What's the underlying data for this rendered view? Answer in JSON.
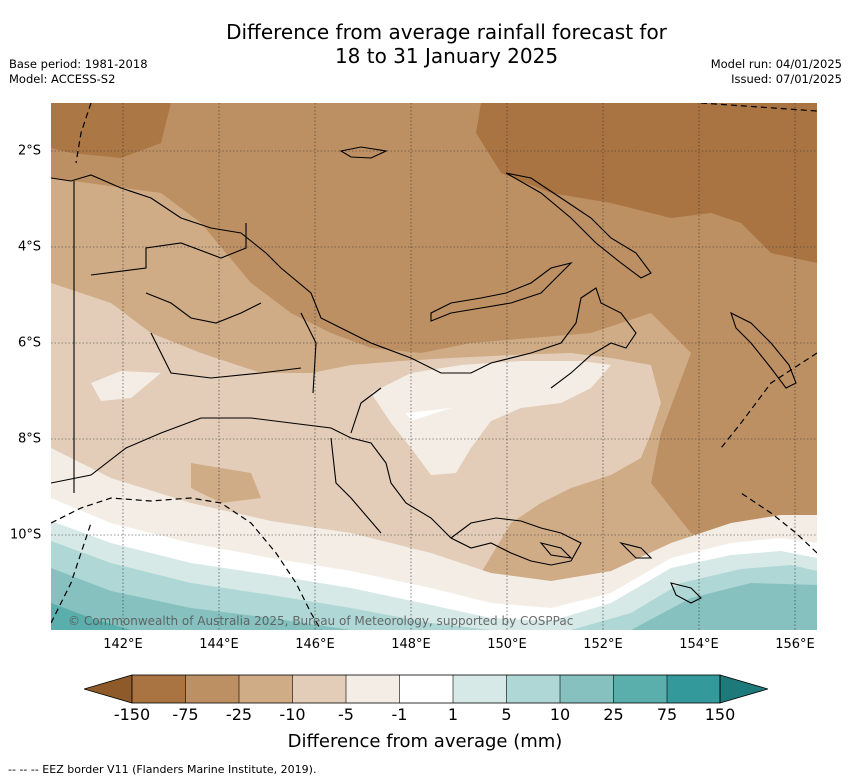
{
  "title_line1": "Difference from average rainfall forecast for",
  "title_line2": "18 to 31 January 2025",
  "base_period": "Base period: 1981-2018",
  "model": "Model: ACCESS-S2",
  "model_run": "Model run: 04/01/2025",
  "issued": "Issued: 07/01/2025",
  "copyright": "© Commonwealth of Australia 2025, Bureau of Meteorology, supported by COSPPac",
  "longitude_labels": [
    "142°E",
    "144°E",
    "146°E",
    "148°E",
    "150°E",
    "152°E",
    "154°E",
    "156°E"
  ],
  "latitude_labels": [
    "2°S",
    "4°S",
    "6°S",
    "8°S",
    "10°S"
  ],
  "colorbar": {
    "ticks": [
      "-150",
      "-75",
      "-25",
      "-10",
      "-5",
      "-1",
      "1",
      "5",
      "10",
      "25",
      "75",
      "150"
    ],
    "colors": [
      "#8e5a2a",
      "#a97441",
      "#bd9064",
      "#cfab86",
      "#e3cdb8",
      "#f3ede5",
      "#ffffff",
      "#d6e9e7",
      "#aed7d5",
      "#86c1bf",
      "#5aaeac",
      "#33999a",
      "#1e7a7a"
    ],
    "title": "Difference from average (mm)"
  },
  "footnote": "--  --  -- EEZ border V11 (Flanders Marine Institute, 2019)."
}
